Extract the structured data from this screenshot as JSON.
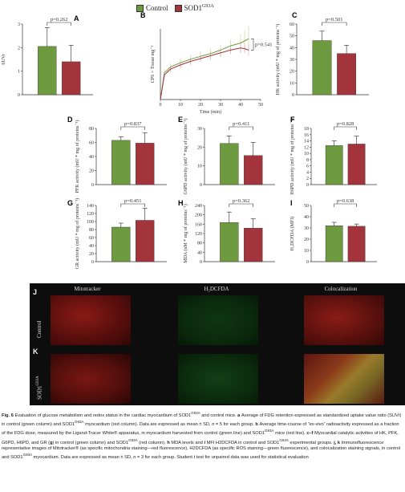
{
  "legend": {
    "items": [
      {
        "label": "Control",
        "color": "#6d9a3f"
      },
      {
        "label": "SOD1",
        "sup": "G93A",
        "color": "#a3343b"
      }
    ]
  },
  "colors": {
    "control": "#6d9a3f",
    "sod1": "#a3343b",
    "error": "#222222"
  },
  "chart_data": [
    {
      "panel": "A",
      "type": "bar",
      "ylabel": "SUVr",
      "ylim": [
        0,
        3
      ],
      "yticks": [
        "0",
        "1",
        "2",
        "3"
      ],
      "values": [
        2.05,
        1.4
      ],
      "errors": [
        0.8,
        0.7
      ],
      "pvalue": "p=0.262"
    },
    {
      "panel": "B",
      "type": "line",
      "ylabel": "CPS × Tissue mg⁻¹",
      "xlabel": "Time (min)",
      "xlim": [
        0,
        50
      ],
      "xticks": [
        "0",
        "10",
        "20",
        "30",
        "40",
        "50"
      ],
      "pvalue": "p=0.541",
      "series": [
        {
          "x": [
            0,
            2,
            5,
            10,
            15,
            20,
            25,
            30,
            35,
            40,
            42,
            44
          ],
          "values": [
            0,
            0.38,
            0.46,
            0.52,
            0.57,
            0.61,
            0.65,
            0.7,
            0.76,
            0.8,
            0.83,
            0.86
          ],
          "errors": [
            0,
            0.05,
            0.05,
            0.06,
            0.06,
            0.07,
            0.07,
            0.08,
            0.09,
            0.12,
            0.15,
            0.18
          ]
        },
        {
          "x": [
            0,
            2,
            5,
            10,
            15,
            20,
            25,
            30,
            35,
            40,
            42,
            44
          ],
          "values": [
            0,
            0.35,
            0.43,
            0.49,
            0.54,
            0.58,
            0.62,
            0.66,
            0.7,
            0.73,
            0.72,
            0.7
          ],
          "errors": [
            0,
            0.04,
            0.04,
            0.05,
            0.05,
            0.05,
            0.06,
            0.06,
            0.06,
            0.07,
            0.07,
            0.08
          ]
        }
      ]
    },
    {
      "panel": "C",
      "type": "bar",
      "ylabel": "HK activity (mU * mg of proteins⁻¹)",
      "ylim": [
        0,
        60
      ],
      "yticks": [
        "0",
        "10",
        "20",
        "30",
        "40",
        "50",
        "60"
      ],
      "values": [
        46,
        35
      ],
      "errors": [
        8,
        7
      ],
      "pvalue": "p=0.501"
    },
    {
      "panel": "D",
      "type": "bar",
      "ylabel": "PFK activity (mU * mg of proteins⁻¹)",
      "ylim": [
        0,
        80
      ],
      "yticks": [
        "0",
        "20",
        "40",
        "60",
        "80"
      ],
      "values": [
        63,
        59
      ],
      "errors": [
        5,
        15
      ],
      "pvalue": "p=0.837"
    },
    {
      "panel": "E",
      "type": "bar",
      "ylabel": "G6PD activity (mU * mg of proteins⁻¹)",
      "ylim": [
        0,
        30
      ],
      "yticks": [
        "0",
        "10",
        "20",
        "30"
      ],
      "values": [
        22,
        15.5
      ],
      "errors": [
        4,
        7
      ],
      "pvalue": "p=0.411"
    },
    {
      "panel": "F",
      "type": "bar",
      "ylabel": "H6PD activity (mU * mg of proteins⁻¹)",
      "ylim": [
        0,
        18
      ],
      "yticks": [
        "0",
        "2",
        "4",
        "6",
        "8",
        "10",
        "12",
        "14",
        "16",
        "18"
      ],
      "values": [
        12.5,
        13
      ],
      "errors": [
        1.5,
        2.5
      ],
      "pvalue": "p=0.828"
    },
    {
      "panel": "G",
      "type": "bar",
      "ylabel": "GR activity (mU * mg of proteins⁻¹)",
      "ylim": [
        0,
        140
      ],
      "yticks": [
        "0",
        "20",
        "40",
        "60",
        "80",
        "100",
        "120",
        "140"
      ],
      "values": [
        86,
        103
      ],
      "errors": [
        10,
        30
      ],
      "pvalue": "p=0.451"
    },
    {
      "panel": "H",
      "type": "bar",
      "ylabel": "MDA (nM * mg of proteins⁻¹)",
      "ylim": [
        0,
        240
      ],
      "yticks": [
        "0",
        "40",
        "80",
        "120",
        "160",
        "200",
        "240"
      ],
      "values": [
        167,
        143
      ],
      "errors": [
        45,
        40
      ],
      "pvalue": "p=0.362"
    },
    {
      "panel": "I",
      "type": "bar",
      "ylabel": "H₂DCFDA (MFI)",
      "ylim": [
        0,
        50
      ],
      "yticks": [
        "0",
        "10",
        "20",
        "30",
        "40",
        "50"
      ],
      "values": [
        32,
        31.5
      ],
      "errors": [
        3,
        2
      ],
      "pvalue": "p=0.638"
    }
  ],
  "images": {
    "columns": [
      "Mitotracker",
      "H₂DCFDA",
      "Colocalization"
    ],
    "rows": [
      {
        "letter": "J",
        "label": "Control"
      },
      {
        "letter": "K",
        "label": "SOD1",
        "sup": "G93A"
      }
    ]
  },
  "caption": [
    {
      "b": "Fig. 6 "
    },
    {
      "t": "Evaluation of glucose metabolism and redox status in the cardiac myocardium of SOD1"
    },
    {
      "sup": "G93A"
    },
    {
      "t": " and control mice. "
    },
    {
      "b": "a "
    },
    {
      "t": "Average of FDG retention expressed as standardized uptake value ratio (SUVr) in control (green column) and SOD1"
    },
    {
      "sup": "G93A"
    },
    {
      "t": " myocardium (red column). Data are expressed as mean ± SD, "
    },
    {
      "i": "n"
    },
    {
      "t": " = 5 for each group. "
    },
    {
      "b": "b "
    },
    {
      "t": "Average time-course of “ex-vivo” radioactivity expressed as a fraction of the FDG dose, measured by the Ligand-Tracer White® apparatus, in myocardium harvested from control (green line) and SOD1"
    },
    {
      "sup": "G93A"
    },
    {
      "t": " mice (red line). "
    },
    {
      "b": "c–f "
    },
    {
      "t": "Myocardial catalytic activities of HK, PFK, G6PD, H6PD, and GR ("
    },
    {
      "b": "g"
    },
    {
      "t": ") in control (green column) and SOD1"
    },
    {
      "sup": "G93A"
    },
    {
      "t": " (red column). "
    },
    {
      "b": "h "
    },
    {
      "t": "MDA levels and "
    },
    {
      "b": "i "
    },
    {
      "t": "MFI H2DCFDA in control and SOD1"
    },
    {
      "sup": "G93A"
    },
    {
      "t": " experimental groups. "
    },
    {
      "b": "j, k "
    },
    {
      "t": "Immunofluorescence representative images of Mitotracker® (as specific mitochondria staining—red fluorescence), H2DCFDA (as specific ROS staining—green fluorescence), and colocalization staining signals, in control and SOD1"
    },
    {
      "sup": "G93A"
    },
    {
      "t": " myocardium. Data are expressed as mean ± SD, "
    },
    {
      "i": "n"
    },
    {
      "t": " = 3 for each group. Student "
    },
    {
      "i": "t"
    },
    {
      "t": " test for unpaired data was used for statistical evaluation"
    }
  ]
}
